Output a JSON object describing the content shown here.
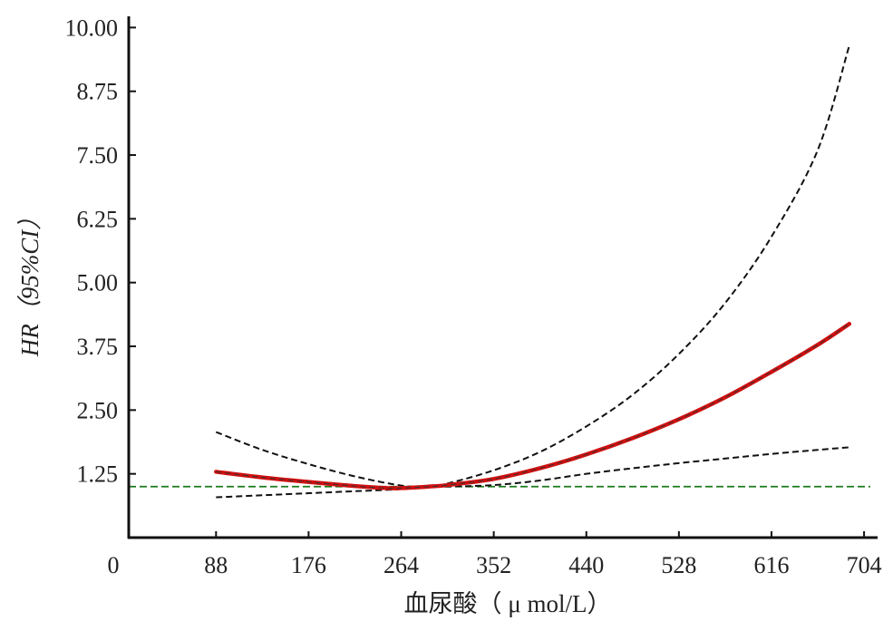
{
  "chart_data": {
    "type": "line",
    "xlabel": "血尿酸（ μ mol/L）",
    "ylabel": "HR（95%CI）",
    "origin_label": "0",
    "x_ticks": [
      88,
      176,
      264,
      352,
      440,
      528,
      616,
      704
    ],
    "y_ticks": [
      "1.25",
      "2.50",
      "3.75",
      "5.00",
      "6.25",
      "7.50",
      "8.75",
      "10.00"
    ],
    "xlim": [
      5,
      716
    ],
    "ylim": [
      0,
      10.22
    ],
    "grid": false,
    "reference_line": {
      "y": 1.0,
      "color": "#1a7a1a",
      "style": "dashed"
    },
    "series": [
      {
        "role": "hr",
        "color": "#d01010",
        "style": "solid",
        "x": [
          88,
          132,
          176,
          220,
          250,
          264,
          290,
          308,
          352,
          396,
          440,
          484,
          528,
          572,
          616,
          660,
          690
        ],
        "y": [
          1.29,
          1.18,
          1.09,
          1.01,
          0.97,
          0.97,
          1.0,
          1.03,
          1.15,
          1.36,
          1.63,
          1.95,
          2.32,
          2.75,
          3.25,
          3.78,
          4.19
        ]
      },
      {
        "role": "upper-ci",
        "color": "#111111",
        "style": "dashed",
        "x": [
          88,
          132,
          176,
          220,
          264,
          290,
          308,
          352,
          396,
          440,
          484,
          528,
          572,
          616,
          660,
          690
        ],
        "y": [
          2.07,
          1.72,
          1.44,
          1.2,
          1.02,
          1.0,
          1.06,
          1.32,
          1.68,
          2.18,
          2.8,
          3.6,
          4.6,
          5.9,
          7.6,
          9.65
        ]
      },
      {
        "role": "lower-ci",
        "color": "#111111",
        "style": "dashed",
        "x": [
          88,
          132,
          176,
          220,
          264,
          290,
          308,
          352,
          396,
          440,
          484,
          528,
          572,
          616,
          660,
          690
        ],
        "y": [
          0.79,
          0.83,
          0.87,
          0.91,
          0.95,
          1.0,
          1.0,
          1.03,
          1.12,
          1.25,
          1.36,
          1.46,
          1.55,
          1.64,
          1.72,
          1.77
        ]
      }
    ]
  }
}
